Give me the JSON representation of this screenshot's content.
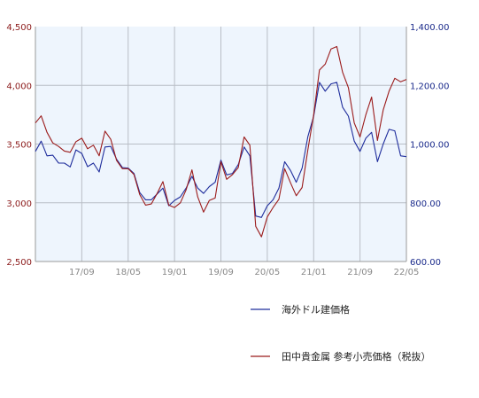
{
  "chart_data": {
    "type": "line",
    "y_left": {
      "ylim": [
        2500,
        4500
      ],
      "ticks": [
        "4,500",
        "4,000",
        "3,500",
        "3,000",
        "2,500"
      ],
      "color": "#8b1a1a"
    },
    "y_right": {
      "ylim": [
        600,
        1400
      ],
      "ticks": [
        "1,400.00",
        "1,200.00",
        "1,000.00",
        "800.00",
        "600.00"
      ],
      "color": "#1a2a8b"
    },
    "x_ticks": [
      "17/09",
      "18/05",
      "19/01",
      "19/09",
      "20/05",
      "21/01",
      "21/09",
      "22/05"
    ],
    "grid": true,
    "legend_position": "bottom-right",
    "series": [
      {
        "name": "海外ドル建価格",
        "axis": "right",
        "color": "#1f2d9c",
        "values": [
          975,
          1010,
          960,
          962,
          935,
          935,
          922,
          980,
          968,
          923,
          935,
          905,
          990,
          992,
          948,
          920,
          918,
          900,
          835,
          810,
          810,
          830,
          850,
          790,
          808,
          820,
          850,
          890,
          850,
          832,
          855,
          870,
          945,
          895,
          900,
          930,
          990,
          960,
          755,
          750,
          790,
          810,
          850,
          940,
          910,
          870,
          918,
          1025,
          1095,
          1210,
          1180,
          1205,
          1210,
          1125,
          1095,
          1010,
          975,
          1020,
          1040,
          940,
          1000,
          1050,
          1045,
          960,
          957
        ]
      },
      {
        "name": "田中貴金属 参考小売価格（税抜）",
        "axis": "left",
        "color": "#9b1b1b",
        "values": [
          3680,
          3740,
          3600,
          3510,
          3480,
          3440,
          3430,
          3520,
          3550,
          3460,
          3490,
          3400,
          3610,
          3540,
          3360,
          3290,
          3290,
          3240,
          3070,
          2980,
          2990,
          3080,
          3180,
          2980,
          2960,
          3000,
          3110,
          3280,
          3050,
          2920,
          3020,
          3040,
          3350,
          3200,
          3240,
          3300,
          3560,
          3490,
          2800,
          2710,
          2880,
          2960,
          3030,
          3290,
          3170,
          3060,
          3130,
          3450,
          3750,
          4130,
          4180,
          4310,
          4330,
          4110,
          3980,
          3680,
          3560,
          3750,
          3900,
          3530,
          3790,
          3950,
          4060,
          4030,
          4050
        ]
      }
    ]
  }
}
